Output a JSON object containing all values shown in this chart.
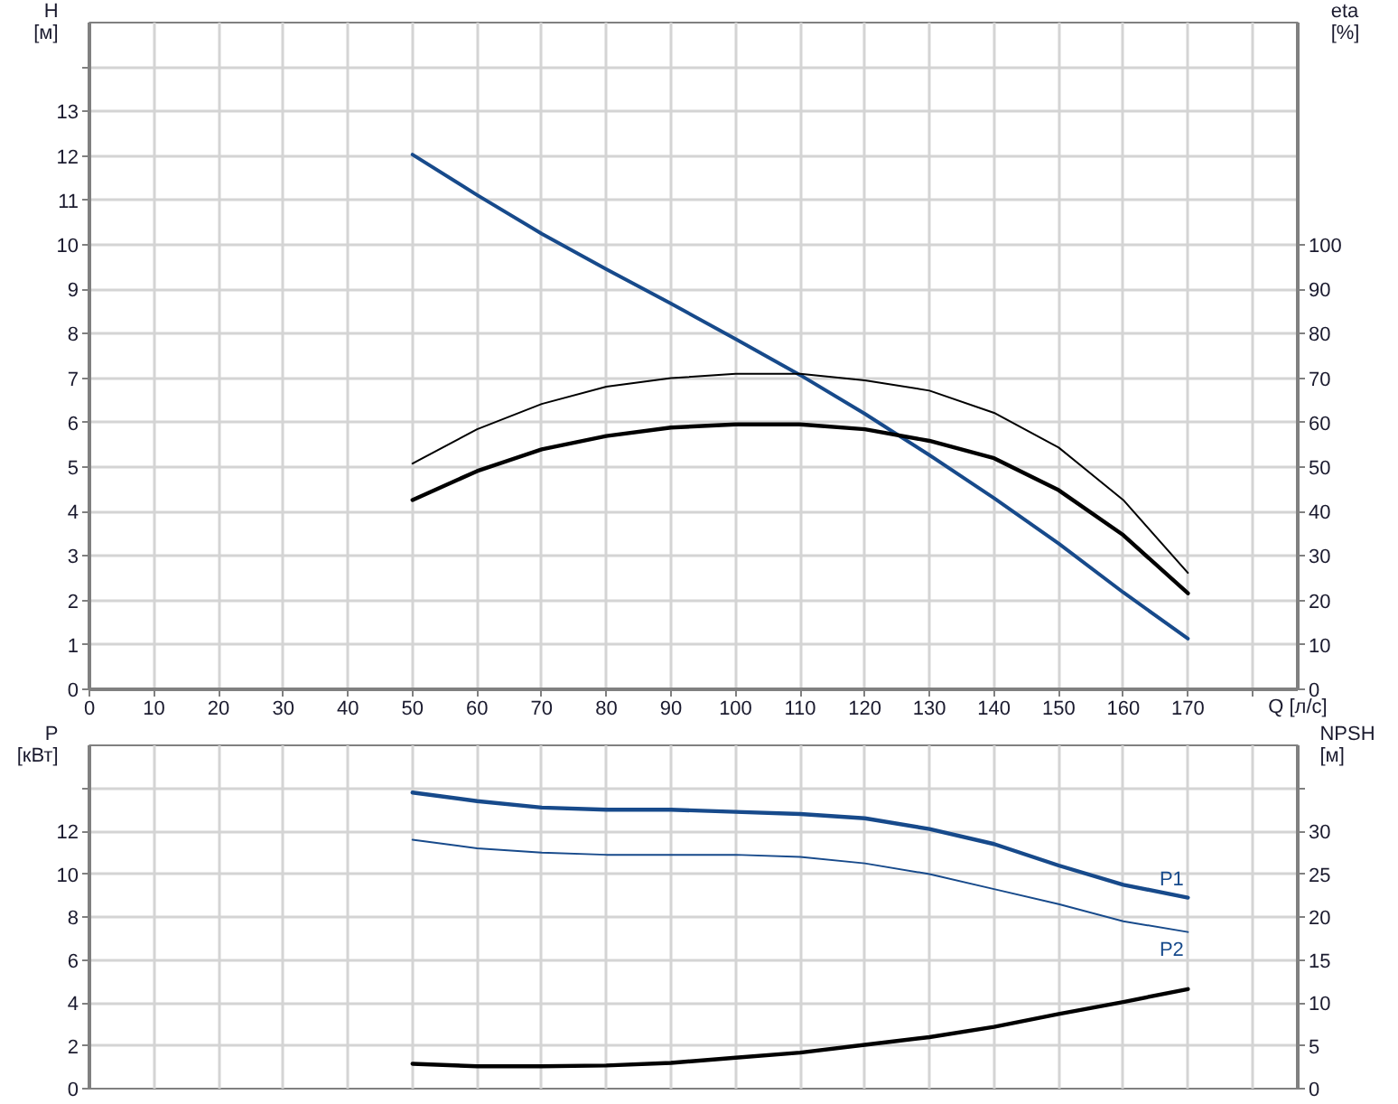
{
  "chart_data": [
    {
      "type": "line",
      "xlabel": "Q [л/с]",
      "ylabel": "H\n[м]",
      "y2label": "eta\n[%]",
      "x": [
        50,
        60,
        70,
        80,
        90,
        100,
        110,
        120,
        130,
        140,
        150,
        160,
        170
      ],
      "xlim": [
        0,
        187
      ],
      "xticks": [
        0,
        10,
        20,
        30,
        40,
        50,
        60,
        70,
        80,
        90,
        100,
        110,
        120,
        130,
        140,
        150,
        160,
        170,
        {
          "value": 180,
          "label": null
        }
      ],
      "ylim": [
        0,
        15
      ],
      "yticks": [
        0,
        1,
        2,
        3,
        4,
        5,
        6,
        7,
        8,
        9,
        10,
        11,
        12,
        13,
        {
          "value": 14,
          "label": null
        }
      ],
      "y2lim": [
        0,
        150
      ],
      "y2ticks": [
        0,
        10,
        20,
        30,
        40,
        50,
        60,
        70,
        80,
        90,
        100
      ],
      "grid": true,
      "series": [
        {
          "color": "#174a8b",
          "values": [
            12.03,
            11.12,
            10.25,
            9.45,
            8.68,
            7.88,
            7.07,
            6.2,
            5.27,
            4.3,
            3.28,
            2.18,
            1.14
          ]
        },
        {
          "color": "#000000",
          "axis": "y2",
          "values": [
            50.8,
            58.5,
            64.2,
            68.1,
            70.0,
            71.0,
            71.0,
            69.5,
            67.2,
            62.2,
            54.4,
            42.6,
            26.2
          ]
        },
        {
          "color": "#000000",
          "axis": "y2",
          "values": [
            42.6,
            49.1,
            54.0,
            57.0,
            58.9,
            59.6,
            59.6,
            58.5,
            55.9,
            52.0,
            44.8,
            34.7,
            21.6
          ]
        }
      ]
    },
    {
      "type": "line",
      "ylabel": "P\n[кВт]",
      "y2label": "NPSH\n[м]",
      "x": [
        50,
        60,
        70,
        80,
        90,
        100,
        110,
        120,
        130,
        140,
        150,
        160,
        170
      ],
      "xlim": [
        0,
        187
      ],
      "xticks": [
        0,
        10,
        20,
        30,
        40,
        50,
        60,
        70,
        80,
        90,
        100,
        110,
        120,
        130,
        140,
        150,
        160,
        170,
        180
      ],
      "ylim": [
        0,
        16
      ],
      "yticks": [
        0,
        2,
        4,
        6,
        8,
        10,
        12,
        {
          "value": 14,
          "label": null
        }
      ],
      "y2lim": [
        0,
        40
      ],
      "y2ticks": [
        0,
        5,
        10,
        15,
        20,
        25,
        30,
        {
          "value": 35,
          "label": null
        }
      ],
      "tick_labels": "y",
      "grid": true,
      "series": [
        {
          "name": "P1",
          "color": "#174a8b",
          "values": [
            13.8,
            13.4,
            13.1,
            13.0,
            13.0,
            12.9,
            12.8,
            12.6,
            12.1,
            11.4,
            10.4,
            9.5,
            8.9
          ]
        },
        {
          "name": "P2",
          "color": "#174a8b",
          "values": [
            11.6,
            11.2,
            11.0,
            10.9,
            10.9,
            10.9,
            10.8,
            10.5,
            10.0,
            9.3,
            8.6,
            7.8,
            7.3
          ]
        },
        {
          "color": "#000000",
          "axis": "y2",
          "values": [
            2.9,
            2.6,
            2.6,
            2.7,
            3.0,
            3.6,
            4.2,
            5.1,
            6.0,
            7.2,
            8.7,
            10.1,
            11.6
          ]
        }
      ]
    }
  ]
}
